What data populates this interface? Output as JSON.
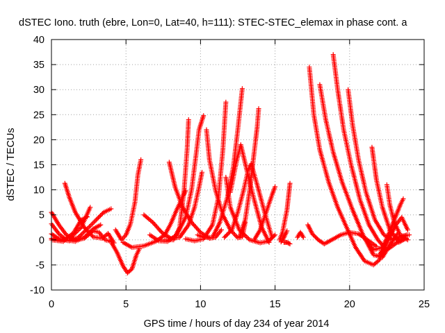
{
  "chart_data": {
    "type": "scatter",
    "title": "dSTEC Iono. truth (ebre, Lon=0, Lat=40, h=111): STEC-STEC_elemax in phase cont. a",
    "xlabel": "GPS time / hours of day 234 of year 2014",
    "ylabel": "dSTEC  / TECUs",
    "xlim": [
      0,
      25
    ],
    "ylim": [
      -10,
      40
    ],
    "x_ticks": [
      0,
      5,
      10,
      15,
      20,
      25
    ],
    "y_ticks": [
      -10,
      -5,
      0,
      5,
      10,
      15,
      20,
      25,
      30,
      35,
      40
    ],
    "grid": true,
    "marker": "+",
    "series_color": "#ff0000",
    "arcs": [
      [
        [
          0.0,
          5.5
        ],
        [
          0.5,
          3.0
        ],
        [
          1.0,
          1.0
        ],
        [
          1.6,
          0.0
        ],
        [
          2.2,
          0.3
        ],
        [
          2.8,
          1.8
        ],
        [
          3.2,
          1.5
        ],
        [
          3.6,
          0.0
        ],
        [
          4.0,
          -0.3
        ]
      ],
      [
        [
          0.0,
          1.2
        ],
        [
          0.5,
          0.2
        ],
        [
          1.2,
          -0.2
        ],
        [
          1.8,
          0.5
        ],
        [
          2.4,
          2.2
        ],
        [
          3.0,
          4.0
        ],
        [
          3.5,
          5.5
        ],
        [
          4.0,
          6.2
        ]
      ],
      [
        [
          0.0,
          0.3
        ],
        [
          0.6,
          -0.1
        ],
        [
          1.3,
          0.5
        ],
        [
          2.0,
          2.5
        ],
        [
          2.6,
          6.5
        ]
      ],
      [
        [
          0.0,
          3.2
        ],
        [
          0.5,
          1.2
        ],
        [
          1.0,
          0.0
        ],
        [
          1.6,
          -0.3
        ],
        [
          2.2,
          0.5
        ],
        [
          2.8,
          2.2
        ],
        [
          3.3,
          3.0
        ]
      ],
      [
        [
          0.9,
          11.3
        ],
        [
          1.2,
          8.5
        ],
        [
          1.6,
          5.5
        ],
        [
          2.2,
          2.5
        ],
        [
          2.8,
          0.6
        ],
        [
          3.4,
          0.3
        ],
        [
          3.8,
          1.3
        ],
        [
          4.2,
          -0.6
        ]
      ],
      [
        [
          0.0,
          0.0
        ],
        [
          0.8,
          -0.3
        ],
        [
          1.5,
          1.5
        ],
        [
          2.0,
          4.0
        ],
        [
          2.4,
          4.6
        ]
      ],
      [
        [
          4.0,
          -0.4
        ],
        [
          4.4,
          -2.5
        ],
        [
          4.8,
          -5.2
        ],
        [
          5.1,
          -6.6
        ],
        [
          5.4,
          -5.8
        ],
        [
          5.7,
          -3.0
        ],
        [
          5.9,
          -1.8
        ]
      ],
      [
        [
          4.3,
          2.0
        ],
        [
          4.7,
          0.0
        ],
        [
          5.0,
          1.0
        ],
        [
          5.3,
          3.2
        ],
        [
          5.6,
          7.5
        ],
        [
          5.8,
          13.0
        ],
        [
          6.0,
          16.0
        ]
      ],
      [
        [
          4.8,
          -0.5
        ],
        [
          5.4,
          -1.5
        ],
        [
          6.2,
          -1.2
        ],
        [
          7.0,
          -0.3
        ],
        [
          7.6,
          1.0
        ],
        [
          8.0,
          3.2
        ],
        [
          8.4,
          6.0
        ],
        [
          8.8,
          8.5
        ],
        [
          9.0,
          9.8
        ]
      ],
      [
        [
          6.2,
          5.0
        ],
        [
          6.8,
          3.5
        ],
        [
          7.4,
          1.5
        ],
        [
          8.0,
          0.3
        ],
        [
          8.6,
          0.5
        ],
        [
          9.2,
          3.0
        ],
        [
          9.6,
          6.5
        ],
        [
          9.9,
          10.5
        ],
        [
          10.1,
          13.5
        ]
      ],
      [
        [
          6.6,
          1.0
        ],
        [
          7.2,
          -0.2
        ],
        [
          7.8,
          -0.3
        ],
        [
          8.4,
          1.0
        ],
        [
          9.0,
          4.5
        ],
        [
          9.4,
          10.0
        ],
        [
          9.7,
          17.0
        ],
        [
          9.9,
          22.0
        ],
        [
          10.2,
          24.8
        ]
      ],
      [
        [
          7.9,
          15.5
        ],
        [
          8.3,
          10.5
        ],
        [
          8.8,
          6.5
        ],
        [
          9.4,
          3.5
        ],
        [
          10.0,
          1.5
        ],
        [
          10.6,
          0.3
        ],
        [
          11.0,
          0.5
        ],
        [
          11.4,
          2.0
        ]
      ],
      [
        [
          7.6,
          0.0
        ],
        [
          8.2,
          0.0
        ],
        [
          8.6,
          2.5
        ],
        [
          8.9,
          10.0
        ],
        [
          9.1,
          18.0
        ],
        [
          9.2,
          24.0
        ]
      ],
      [
        [
          9.0,
          0.2
        ],
        [
          9.6,
          -0.2
        ],
        [
          10.2,
          0.2
        ],
        [
          10.8,
          3.0
        ],
        [
          11.2,
          8.5
        ],
        [
          11.5,
          18.0
        ],
        [
          11.7,
          27.5
        ]
      ],
      [
        [
          10.4,
          22.0
        ],
        [
          10.6,
          16.0
        ],
        [
          11.0,
          10.0
        ],
        [
          11.5,
          5.0
        ],
        [
          12.0,
          2.0
        ],
        [
          12.5,
          0.4
        ],
        [
          12.8,
          0.6
        ],
        [
          13.0,
          3.5
        ]
      ],
      [
        [
          9.8,
          1.0
        ],
        [
          10.2,
          0.5
        ],
        [
          10.8,
          0.5
        ],
        [
          11.3,
          3.5
        ],
        [
          11.8,
          8.5
        ],
        [
          12.2,
          14.5
        ],
        [
          12.5,
          22.0
        ],
        [
          12.8,
          30.2
        ]
      ],
      [
        [
          11.7,
          12.5
        ],
        [
          12.0,
          6.5
        ],
        [
          12.6,
          2.0
        ],
        [
          13.3,
          0.0
        ],
        [
          14.0,
          -0.6
        ],
        [
          14.6,
          -0.2
        ],
        [
          15.0,
          1.0
        ]
      ],
      [
        [
          11.6,
          0.5
        ],
        [
          12.1,
          2.0
        ],
        [
          12.5,
          5.5
        ],
        [
          12.9,
          10.0
        ],
        [
          13.2,
          14.0
        ],
        [
          13.4,
          15.2
        ],
        [
          13.8,
          11.0
        ],
        [
          14.3,
          5.5
        ],
        [
          14.8,
          0.5
        ]
      ],
      [
        [
          12.0,
          9.5
        ],
        [
          12.4,
          15.5
        ],
        [
          12.7,
          19.0
        ],
        [
          13.1,
          14.0
        ],
        [
          13.6,
          8.0
        ],
        [
          14.1,
          2.5
        ],
        [
          14.6,
          -0.5
        ]
      ],
      [
        [
          12.6,
          0.5
        ],
        [
          13.0,
          4.0
        ],
        [
          13.3,
          10.0
        ],
        [
          13.6,
          17.5
        ],
        [
          13.8,
          22.5
        ],
        [
          13.9,
          26.2
        ]
      ],
      [
        [
          13.6,
          0.0
        ],
        [
          14.0,
          2.0
        ],
        [
          14.4,
          5.5
        ],
        [
          14.8,
          9.0
        ],
        [
          15.0,
          10.6
        ]
      ],
      [
        [
          15.3,
          0.0
        ],
        [
          15.5,
          1.5
        ],
        [
          15.8,
          6.0
        ],
        [
          16.0,
          11.3
        ]
      ],
      [
        [
          15.4,
          -0.4
        ],
        [
          15.6,
          0.5
        ],
        [
          15.8,
          1.8
        ]
      ],
      [
        [
          15.6,
          -0.5
        ],
        [
          15.8,
          -0.5
        ],
        [
          16.0,
          -0.8
        ]
      ],
      [
        [
          16.5,
          0.5
        ],
        [
          16.7,
          1.5
        ],
        [
          16.9,
          0.5
        ]
      ],
      [
        [
          17.2,
          3.0
        ],
        [
          17.5,
          1.2
        ],
        [
          17.9,
          0.0
        ],
        [
          18.3,
          -0.8
        ],
        [
          18.8,
          0.0
        ],
        [
          19.4,
          1.0
        ],
        [
          20.0,
          1.5
        ],
        [
          20.6,
          1.2
        ],
        [
          21.2,
          0.0
        ],
        [
          21.8,
          -1.3
        ]
      ],
      [
        [
          17.3,
          34.5
        ],
        [
          17.6,
          25.0
        ],
        [
          18.0,
          18.0
        ],
        [
          18.6,
          11.5
        ],
        [
          19.2,
          6.5
        ],
        [
          19.8,
          2.5
        ],
        [
          20.4,
          -1.5
        ],
        [
          21.0,
          -4.2
        ],
        [
          21.6,
          -5.0
        ],
        [
          22.0,
          -4.0
        ],
        [
          22.4,
          -1.0
        ]
      ],
      [
        [
          18.0,
          31.0
        ],
        [
          18.4,
          24.0
        ],
        [
          18.9,
          17.5
        ],
        [
          19.5,
          11.5
        ],
        [
          20.2,
          6.0
        ],
        [
          20.9,
          1.0
        ],
        [
          21.6,
          -3.0
        ],
        [
          22.2,
          -3.5
        ],
        [
          22.7,
          -1.0
        ],
        [
          23.2,
          1.2
        ]
      ],
      [
        [
          18.9,
          37.0
        ],
        [
          19.2,
          30.0
        ],
        [
          19.6,
          22.0
        ],
        [
          20.1,
          15.0
        ],
        [
          20.7,
          8.0
        ],
        [
          21.3,
          3.0
        ],
        [
          21.9,
          0.0
        ],
        [
          22.5,
          -2.0
        ],
        [
          23.2,
          -0.5
        ],
        [
          23.8,
          1.0
        ]
      ],
      [
        [
          19.9,
          30.0
        ],
        [
          20.2,
          23.0
        ],
        [
          20.6,
          16.0
        ],
        [
          21.1,
          9.5
        ],
        [
          21.7,
          4.0
        ],
        [
          22.3,
          1.0
        ],
        [
          22.9,
          0.0
        ],
        [
          23.5,
          0.8
        ],
        [
          24.0,
          1.0
        ]
      ],
      [
        [
          21.1,
          0.0
        ],
        [
          21.6,
          -2.0
        ],
        [
          22.2,
          -1.5
        ],
        [
          22.6,
          1.0
        ],
        [
          23.0,
          4.0
        ],
        [
          23.4,
          7.0
        ],
        [
          23.6,
          8.2
        ]
      ],
      [
        [
          21.5,
          18.5
        ],
        [
          21.8,
          12.0
        ],
        [
          22.2,
          6.5
        ],
        [
          22.7,
          2.0
        ],
        [
          23.3,
          -0.5
        ],
        [
          23.8,
          0.3
        ]
      ],
      [
        [
          22.5,
          11.0
        ],
        [
          22.7,
          7.0
        ],
        [
          23.0,
          3.5
        ],
        [
          23.4,
          1.0
        ],
        [
          23.9,
          0.0
        ]
      ],
      [
        [
          22.0,
          -3.0
        ],
        [
          22.6,
          0.0
        ],
        [
          23.1,
          3.0
        ],
        [
          23.5,
          4.5
        ],
        [
          23.9,
          2.0
        ]
      ]
    ]
  }
}
